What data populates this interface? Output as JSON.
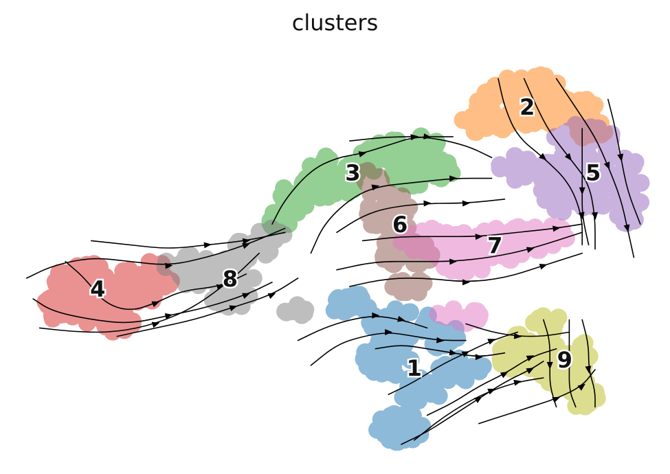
{
  "chart_data": {
    "type": "scatter",
    "title": "clusters",
    "xlabel": "",
    "ylabel": "",
    "grid": false,
    "legend": "on data",
    "xlim": [
      0,
      100
    ],
    "ylim": [
      0,
      100
    ],
    "series": [
      {
        "name": "1",
        "color": "#1f77b4",
        "centroid": [
          62.0,
          21.0
        ],
        "blobs": [
          [
            52,
            37,
            3.5,
            2.4
          ],
          [
            60,
            32,
            5,
            4
          ],
          [
            58,
            24,
            4.2,
            4.5
          ],
          [
            63,
            16,
            3.2,
            3.4
          ],
          [
            60,
            7,
            4,
            3.5
          ],
          [
            69,
            21,
            3.8,
            3
          ],
          [
            66,
            29,
            3,
            3
          ]
        ]
      },
      {
        "name": "2",
        "color": "#ff7f0e",
        "centroid": [
          79.5,
          83.8
        ],
        "blobs": [
          [
            79,
            85,
            7.5,
            5.5
          ],
          [
            86,
            83,
            5,
            4
          ],
          [
            73,
            81,
            3.5,
            3.5
          ],
          [
            80,
            90,
            4.2,
            2.5
          ],
          [
            89,
            79,
            3,
            2.5
          ]
        ]
      },
      {
        "name": "3",
        "color": "#2ca02c",
        "centroid": [
          52.5,
          68.0
        ],
        "blobs": [
          [
            49,
            67,
            4.5,
            5.8
          ],
          [
            44,
            63,
            2.8,
            4.5
          ],
          [
            58,
            72,
            5,
            3.8
          ],
          [
            63,
            69,
            5,
            4
          ],
          [
            62,
            75,
            4.2,
            2.2
          ],
          [
            41,
            57,
            2,
            2
          ]
        ]
      },
      {
        "name": "4",
        "color": "#d62728",
        "centroid": [
          13.0,
          40.0
        ],
        "blobs": [
          [
            11,
            40,
            5.8,
            6.8
          ],
          [
            18,
            40,
            4.5,
            5
          ],
          [
            22,
            44,
            3.2,
            3.5
          ],
          [
            7,
            36,
            3,
            4.2
          ],
          [
            15,
            33,
            4,
            3
          ]
        ]
      },
      {
        "name": "5",
        "color": "#9467bd",
        "centroid": [
          89.7,
          68.0
        ],
        "blobs": [
          [
            89,
            68,
            5,
            9
          ],
          [
            84,
            65,
            4,
            7
          ],
          [
            95,
            64,
            2.5,
            8
          ],
          [
            78,
            69,
            3,
            3.5
          ],
          [
            88,
            77,
            5,
            3
          ]
        ]
      },
      {
        "name": "6",
        "color": "#8c564b",
        "centroid": [
          59.8,
          55.5
        ],
        "blobs": [
          [
            58,
            58,
            3.4,
            6.8
          ],
          [
            61,
            49,
            4.2,
            3.5
          ],
          [
            55,
            66,
            2,
            3
          ],
          [
            61,
            41,
            3.5,
            2
          ]
        ]
      },
      {
        "name": "7",
        "color": "#e377c2",
        "centroid": [
          74.5,
          50.5
        ],
        "blobs": [
          [
            73,
            51,
            8.5,
            4.2
          ],
          [
            81,
            53,
            5,
            3.5
          ],
          [
            65,
            52,
            5,
            3
          ],
          [
            70,
            47,
            4.5,
            2.5
          ],
          [
            69,
            34,
            3.5,
            2
          ]
        ]
      },
      {
        "name": "8",
        "color": "#7f7f7f",
        "centroid": [
          33.5,
          42.5
        ],
        "blobs": [
          [
            31,
            44,
            6.5,
            3.8
          ],
          [
            37,
            50,
            3.2,
            2.5
          ],
          [
            27,
            46,
            4,
            2.5
          ],
          [
            34,
            38,
            3.2,
            2.2
          ],
          [
            44,
            35,
            2,
            1.5
          ],
          [
            40,
            54,
            2,
            2
          ]
        ]
      },
      {
        "name": "9",
        "color": "#bcbd22",
        "centroid": [
          85.3,
          23.0
        ],
        "blobs": [
          [
            85,
            23,
            4.5,
            8
          ],
          [
            78,
            25,
            3.2,
            5
          ],
          [
            88,
            15,
            2.5,
            3.5
          ],
          [
            83,
            32,
            3,
            2
          ]
        ]
      }
    ],
    "streamlines": [
      [
        [
          2,
          43
        ],
        [
          6,
          46
        ],
        [
          12,
          48
        ],
        [
          18,
          47
        ],
        [
          24,
          46
        ],
        [
          30,
          48
        ],
        [
          36,
          51
        ],
        [
          42,
          55
        ]
      ],
      [
        [
          3,
          38
        ],
        [
          6,
          35
        ],
        [
          12,
          33
        ],
        [
          18,
          32
        ],
        [
          24,
          34
        ],
        [
          30,
          36
        ],
        [
          36,
          39
        ],
        [
          40,
          42
        ]
      ],
      [
        [
          8,
          47
        ],
        [
          11,
          43
        ],
        [
          14,
          37
        ],
        [
          18,
          35
        ],
        [
          22,
          37
        ],
        [
          26,
          40
        ],
        [
          32,
          41
        ],
        [
          36,
          44
        ]
      ],
      [
        [
          12,
          52
        ],
        [
          18,
          51
        ],
        [
          24,
          50
        ],
        [
          30,
          51
        ],
        [
          36,
          52
        ],
        [
          42,
          54
        ]
      ],
      [
        [
          16,
          29
        ],
        [
          22,
          31
        ],
        [
          28,
          33
        ],
        [
          34,
          36
        ],
        [
          40,
          39
        ],
        [
          44,
          43
        ]
      ],
      [
        [
          4,
          31
        ],
        [
          10,
          30
        ],
        [
          16,
          30
        ],
        [
          22,
          32
        ],
        [
          28,
          36
        ],
        [
          34,
          43
        ],
        [
          38,
          49
        ]
      ],
      [
        [
          40,
          56
        ],
        [
          42,
          62
        ],
        [
          46,
          69
        ],
        [
          50,
          72
        ],
        [
          54,
          73
        ],
        [
          58,
          75
        ],
        [
          62,
          77
        ],
        [
          68,
          77
        ]
      ],
      [
        [
          46,
          49
        ],
        [
          48,
          56
        ],
        [
          52,
          62
        ],
        [
          56,
          65
        ],
        [
          62,
          66
        ],
        [
          68,
          67
        ],
        [
          74,
          67
        ]
      ],
      [
        [
          50,
          54
        ],
        [
          54,
          58
        ],
        [
          58,
          60
        ],
        [
          64,
          61
        ],
        [
          70,
          61
        ],
        [
          76,
          62
        ]
      ],
      [
        [
          52,
          76
        ],
        [
          58,
          77
        ],
        [
          64,
          77
        ],
        [
          70,
          75
        ],
        [
          74,
          72
        ]
      ],
      [
        [
          50,
          45
        ],
        [
          56,
          47
        ],
        [
          62,
          47
        ],
        [
          68,
          47
        ],
        [
          74,
          48
        ],
        [
          80,
          50
        ],
        [
          88,
          54
        ]
      ],
      [
        [
          52,
          41
        ],
        [
          58,
          43
        ],
        [
          64,
          43
        ],
        [
          70,
          42
        ],
        [
          76,
          43
        ],
        [
          82,
          46
        ],
        [
          88,
          49
        ]
      ],
      [
        [
          54,
          52
        ],
        [
          60,
          53
        ],
        [
          66,
          53
        ],
        [
          72,
          53
        ],
        [
          78,
          54
        ],
        [
          84,
          55
        ],
        [
          88,
          56
        ]
      ],
      [
        [
          75,
          91
        ],
        [
          76,
          84
        ],
        [
          78,
          77
        ],
        [
          82,
          72
        ],
        [
          86,
          66
        ],
        [
          88,
          58
        ],
        [
          88,
          51
        ]
      ],
      [
        [
          79,
          91
        ],
        [
          81,
          84
        ],
        [
          83,
          78
        ],
        [
          86,
          72
        ],
        [
          89,
          66
        ],
        [
          90,
          58
        ],
        [
          90,
          50
        ]
      ],
      [
        [
          84,
          91
        ],
        [
          87,
          84
        ],
        [
          90,
          77
        ],
        [
          92,
          70
        ],
        [
          94,
          62
        ],
        [
          95,
          55
        ],
        [
          96,
          48
        ]
      ],
      [
        [
          92,
          86
        ],
        [
          93,
          80
        ],
        [
          94,
          72
        ],
        [
          95,
          64
        ],
        [
          97,
          56
        ]
      ],
      [
        [
          88,
          79
        ],
        [
          88,
          72
        ],
        [
          88,
          64
        ],
        [
          88,
          58
        ],
        [
          89,
          51
        ]
      ],
      [
        [
          44,
          28
        ],
        [
          48,
          31
        ],
        [
          52,
          33
        ],
        [
          56,
          34
        ],
        [
          60,
          33
        ],
        [
          64,
          31
        ]
      ],
      [
        [
          46,
          22
        ],
        [
          50,
          27
        ],
        [
          54,
          29
        ],
        [
          58,
          30
        ],
        [
          62,
          29
        ],
        [
          66,
          28
        ],
        [
          70,
          28
        ]
      ],
      [
        [
          56,
          26
        ],
        [
          60,
          27
        ],
        [
          64,
          26
        ],
        [
          68,
          25
        ],
        [
          72,
          24
        ],
        [
          76,
          25
        ]
      ],
      [
        [
          60,
          3
        ],
        [
          64,
          6
        ],
        [
          68,
          10
        ],
        [
          72,
          14
        ],
        [
          76,
          18
        ],
        [
          80,
          21
        ],
        [
          82,
          23
        ]
      ],
      [
        [
          62,
          4
        ],
        [
          66,
          9
        ],
        [
          70,
          13
        ],
        [
          74,
          16
        ],
        [
          78,
          18
        ],
        [
          82,
          19
        ]
      ],
      [
        [
          64,
          10
        ],
        [
          68,
          13
        ],
        [
          72,
          17
        ],
        [
          76,
          20
        ],
        [
          80,
          24
        ],
        [
          84,
          26
        ]
      ],
      [
        [
          58,
          15
        ],
        [
          62,
          18
        ],
        [
          66,
          22
        ],
        [
          70,
          25
        ],
        [
          74,
          28
        ],
        [
          78,
          30
        ]
      ],
      [
        [
          72,
          8
        ],
        [
          76,
          10
        ],
        [
          80,
          12
        ],
        [
          84,
          14
        ],
        [
          88,
          17
        ],
        [
          90,
          21
        ]
      ],
      [
        [
          86,
          33
        ],
        [
          86,
          27
        ],
        [
          86,
          22
        ],
        [
          86,
          16
        ],
        [
          87,
          12
        ]
      ],
      [
        [
          88,
          33
        ],
        [
          89,
          27
        ],
        [
          89,
          21
        ],
        [
          90,
          16
        ],
        [
          90,
          12
        ]
      ],
      [
        [
          82,
          33
        ],
        [
          83,
          28
        ],
        [
          83,
          22
        ],
        [
          83,
          17
        ],
        [
          84,
          12
        ]
      ],
      [
        [
          70,
          32
        ],
        [
          74,
          30
        ],
        [
          78,
          29
        ],
        [
          82,
          29
        ],
        [
          86,
          30
        ]
      ]
    ]
  }
}
